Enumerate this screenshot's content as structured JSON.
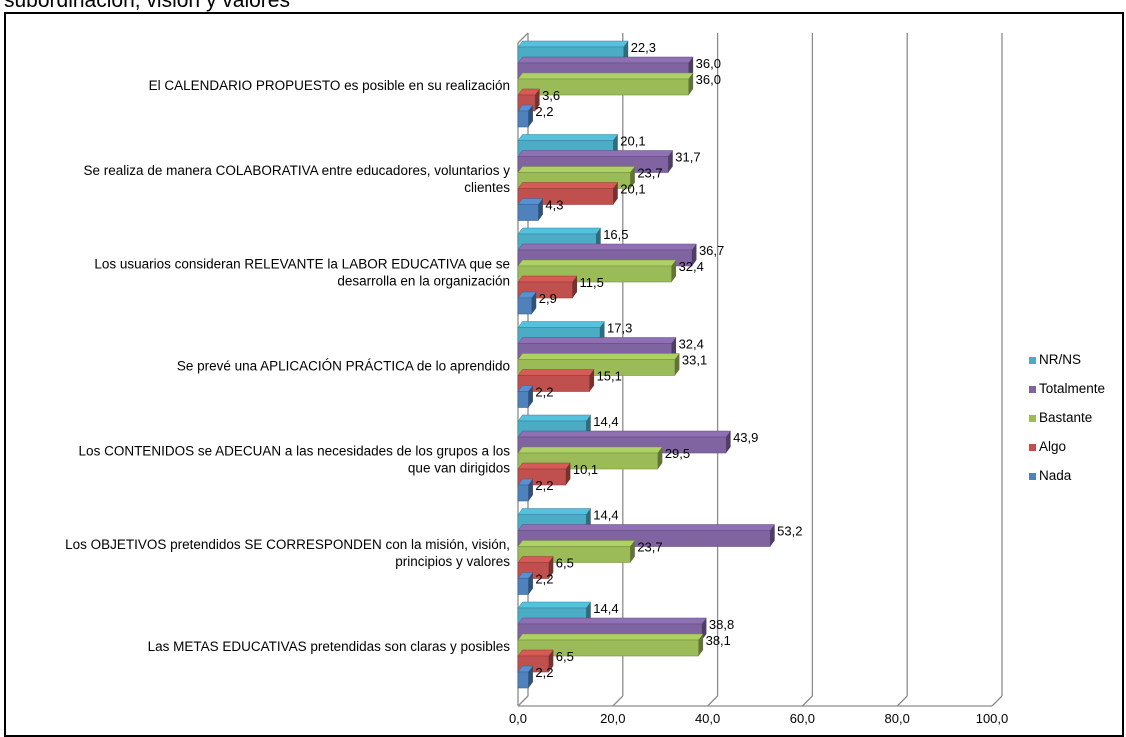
{
  "page": {
    "top_fragment": "subordinación, visión y valores"
  },
  "chart_data": {
    "type": "bar",
    "orientation": "horizontal",
    "style": "3d-clustered",
    "categories": [
      "El CALENDARIO PROPUESTO es posible en su realización",
      "Se realiza de manera COLABORATIVA entre educadores, voluntarios y clientes",
      "Los usuarios consideran RELEVANTE la LABOR EDUCATIVA que se desarrolla en la organización",
      "Se prevé una APLICACIÓN PRÁCTICA de lo aprendido",
      "Los CONTENIDOS se ADECUAN a las necesidades de los grupos a los que van dirigidos",
      "Los OBJETIVOS pretendidos SE CORRESPONDEN con la misión, visión, principios y valores",
      "Las METAS EDUCATIVAS pretendidas son claras y posibles"
    ],
    "category_lines": [
      [
        "El CALENDARIO PROPUESTO es posible en su realización"
      ],
      [
        "Se realiza de manera COLABORATIVA entre educadores, voluntarios y",
        "clientes"
      ],
      [
        "Los usuarios consideran RELEVANTE la LABOR EDUCATIVA que se",
        "desarrolla en la organización"
      ],
      [
        "Se prevé una APLICACIÓN PRÁCTICA de lo aprendido"
      ],
      [
        "Los CONTENIDOS se ADECUAN a las necesidades de los grupos a los",
        "que van dirigidos"
      ],
      [
        "Los OBJETIVOS pretendidos SE CORRESPONDEN con la misión, visión,",
        "principios y valores"
      ],
      [
        "Las METAS EDUCATIVAS pretendidas son claras y posibles"
      ]
    ],
    "series": [
      {
        "name": "NR/NS",
        "color": "#4BACC6",
        "values": [
          22.3,
          20.1,
          16.5,
          17.3,
          14.4,
          14.4,
          14.4
        ],
        "labels": [
          "22,3",
          "20,1",
          "16,5",
          "17,3",
          "14,4",
          "14,4",
          "14,4"
        ]
      },
      {
        "name": "Totalmente",
        "color": "#8064A2",
        "values": [
          36.0,
          31.7,
          36.7,
          32.4,
          43.9,
          53.2,
          38.8
        ],
        "labels": [
          "36,0",
          "31,7",
          "36,7",
          "32,4",
          "43,9",
          "53,2",
          "38,8"
        ]
      },
      {
        "name": "Bastante",
        "color": "#9BBB59",
        "values": [
          36.0,
          23.7,
          32.4,
          33.1,
          29.5,
          23.7,
          38.1
        ],
        "labels": [
          "36,0",
          "23,7",
          "32,4",
          "33,1",
          "29,5",
          "23,7",
          "38,1"
        ]
      },
      {
        "name": "Algo",
        "color": "#C0504D",
        "values": [
          3.6,
          20.1,
          11.5,
          15.1,
          10.1,
          6.5,
          6.5
        ],
        "labels": [
          "3,6",
          "20,1",
          "11,5",
          "15,1",
          "10,1",
          "6,5",
          "6,5"
        ]
      },
      {
        "name": "Nada",
        "color": "#4F81BD",
        "values": [
          2.2,
          4.3,
          2.9,
          2.2,
          2.2,
          2.2,
          2.2
        ],
        "labels": [
          "2,2",
          "4,3",
          "2,9",
          "2,2",
          "2,2",
          "2,2",
          "2,2"
        ]
      }
    ],
    "x_ticks": [
      "0,0",
      "20,0",
      "40,0",
      "60,0",
      "80,0",
      "100,0"
    ],
    "xlim": [
      0,
      100
    ],
    "grid": true,
    "legend_position": "right"
  }
}
